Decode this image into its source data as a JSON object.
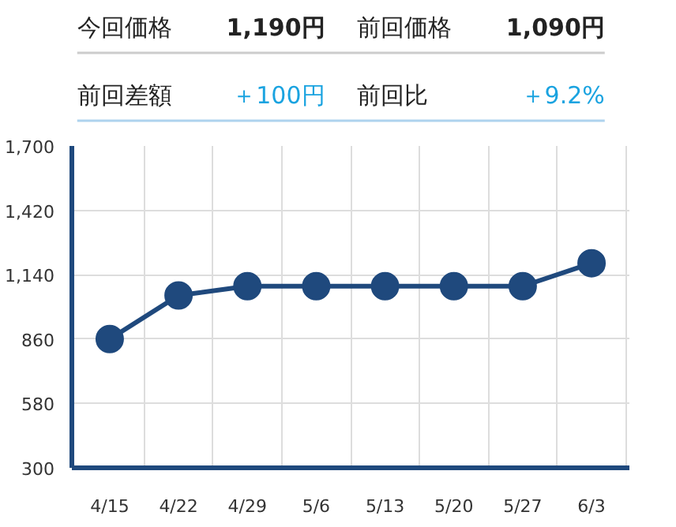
{
  "chart_data": [
    {
      "type": "other",
      "annotations": [
        "今回価格",
        "1,190円",
        "前回価格",
        "1,090円",
        "前回差額",
        "＋100円",
        "前回比",
        "＋9.2%"
      ]
    },
    {
      "type": "line",
      "categories": [
        "4/15",
        "4/22",
        "4/29",
        "5/6",
        "5/13",
        "5/20",
        "5/27",
        "6/3"
      ],
      "series": [
        {
          "color": "#1f497d",
          "values": [
            860,
            1050,
            1090,
            1090,
            1090,
            1090,
            1090,
            1190
          ]
        }
      ],
      "ylim": [
        300,
        1700
      ],
      "yticks": [
        {
          "value": 300,
          "label": "300"
        },
        {
          "value": 580,
          "label": "580"
        },
        {
          "value": 860,
          "label": "860"
        },
        {
          "value": 1140,
          "label": "1,140"
        },
        {
          "value": 1420,
          "label": "1,420"
        },
        {
          "value": 1700,
          "label": "1,700"
        }
      ],
      "grid": true,
      "marker": "circle",
      "line_style": "solid"
    }
  ]
}
